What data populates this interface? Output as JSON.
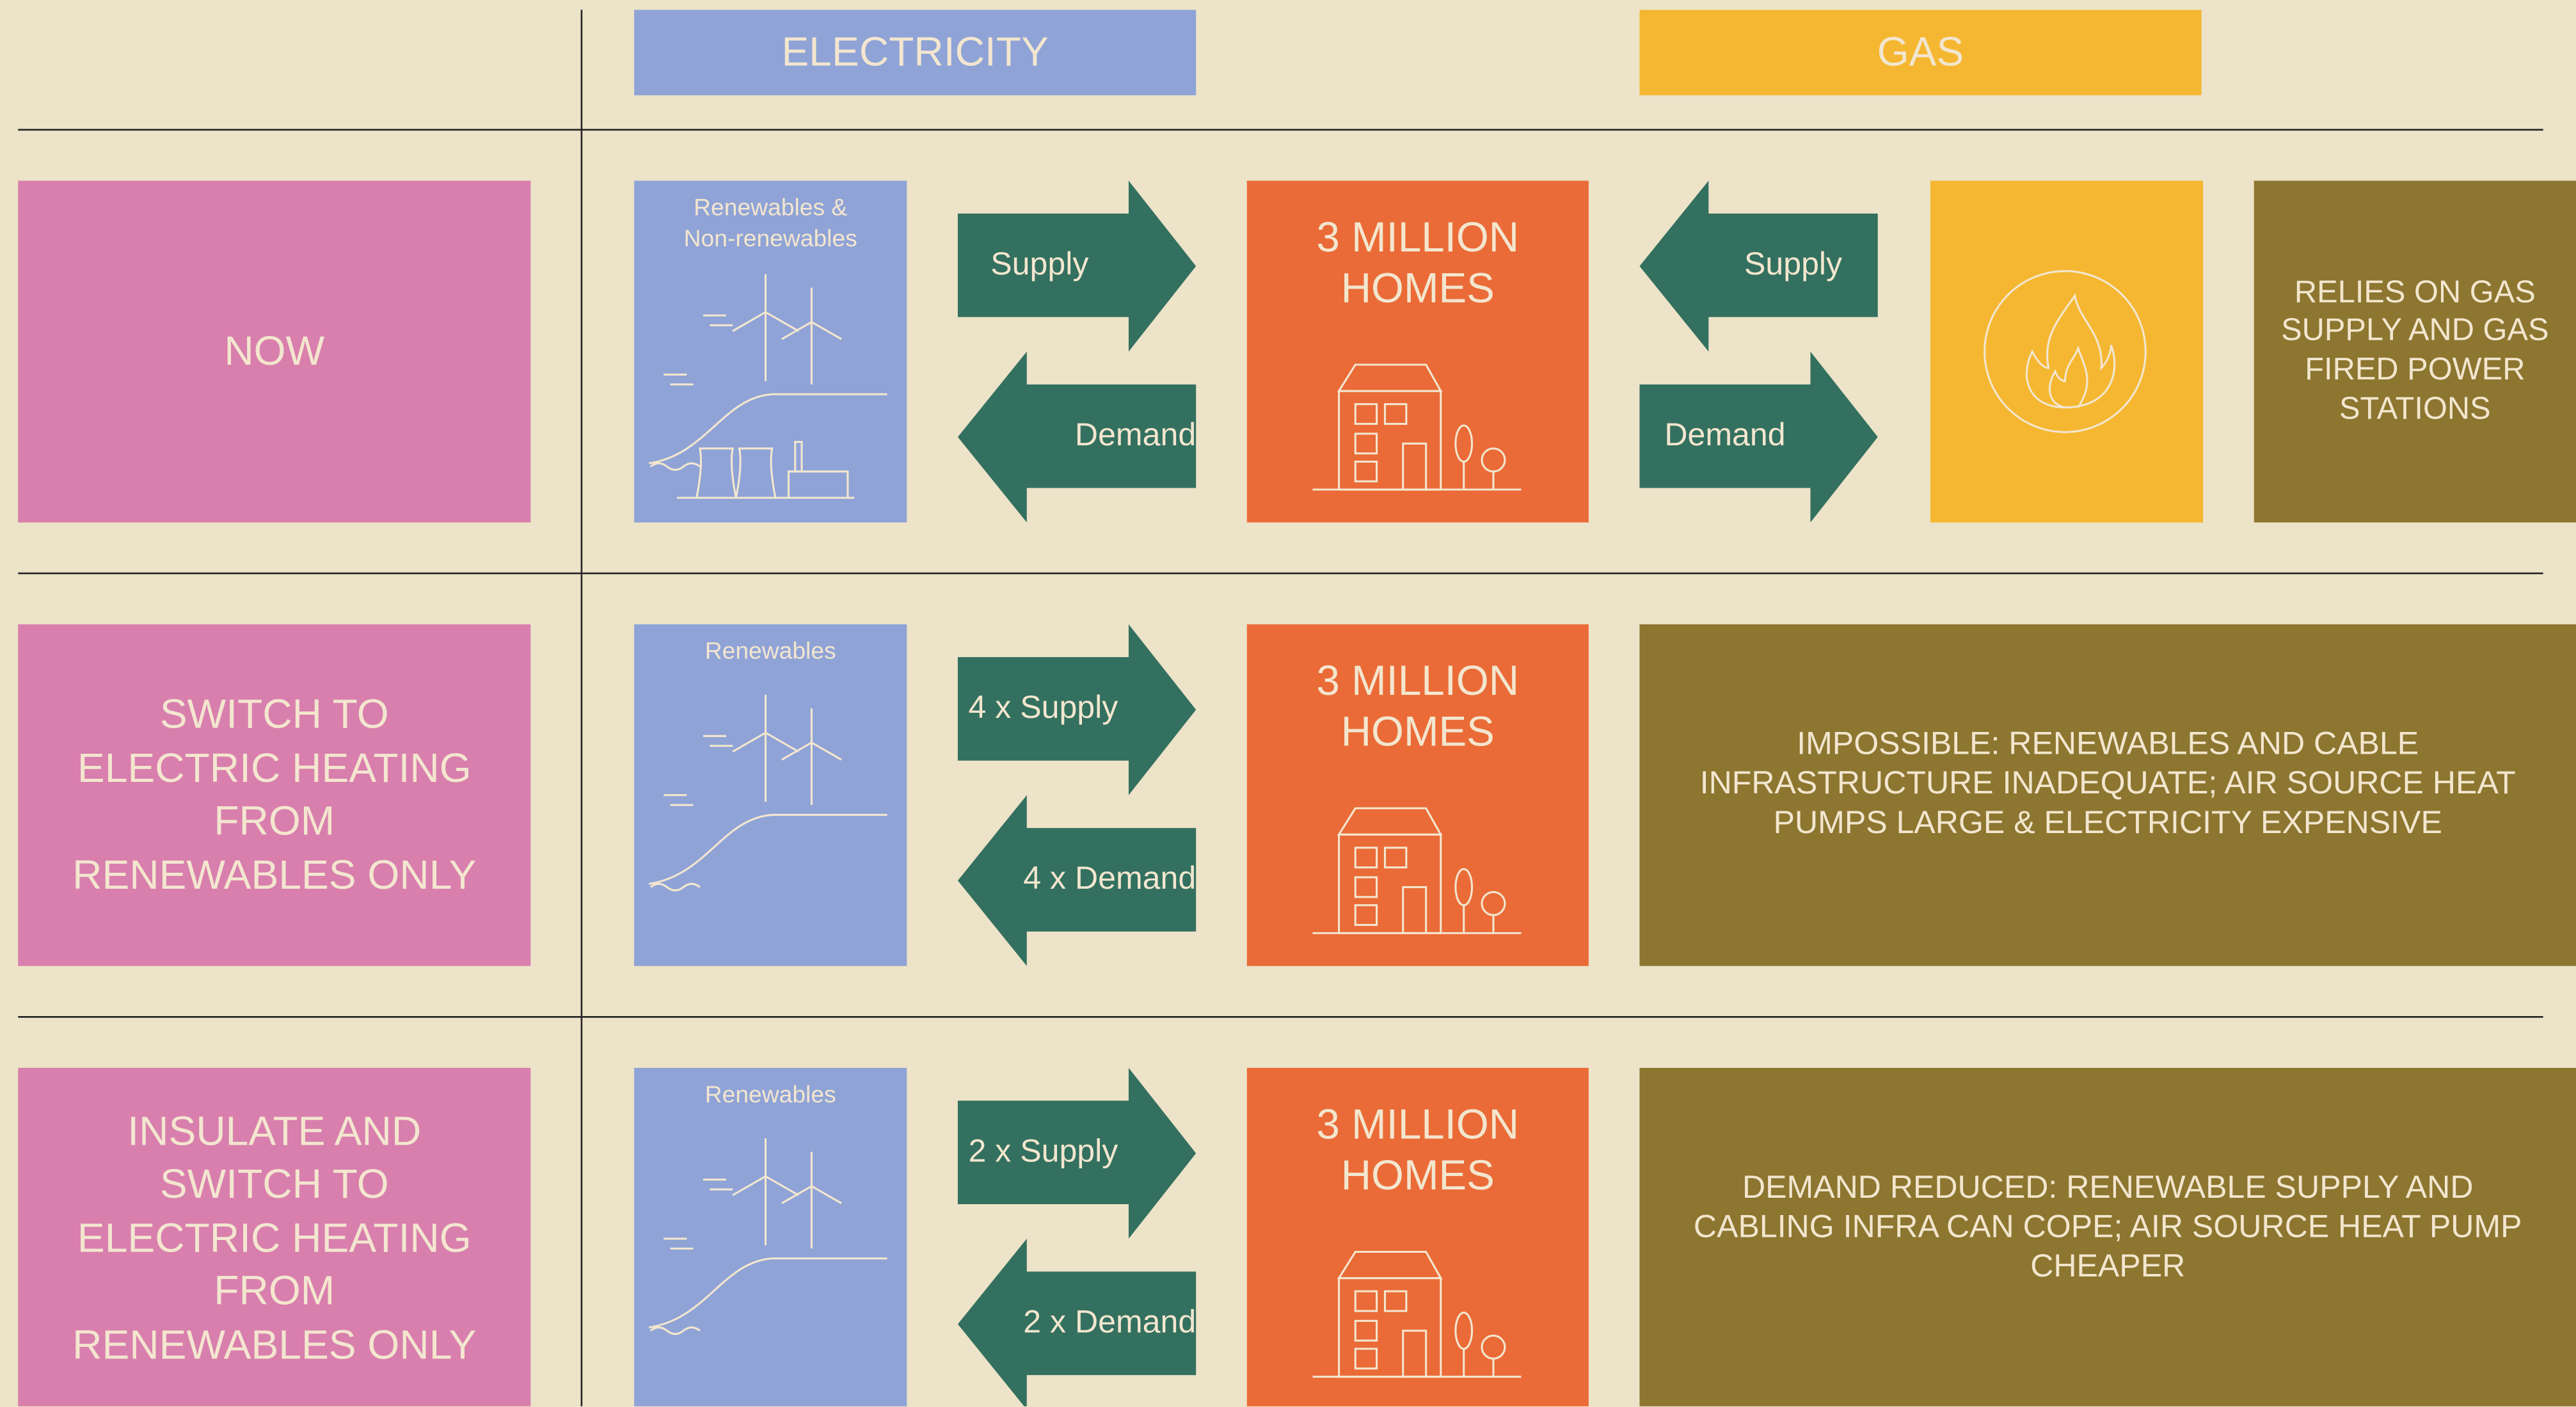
{
  "headers": {
    "electricity": "ELECTRICITY",
    "gas": "GAS"
  },
  "rows": [
    {
      "label": "NOW",
      "source": "Renewables & Non-renewables",
      "supply": "Supply",
      "demand": "Demand",
      "homes": "3 MILLION HOMES",
      "gas_supply": "Supply",
      "gas_demand": "Demand",
      "note": "RELIES ON GAS SUPPLY AND GAS FIRED POWER STATIONS"
    },
    {
      "label": "SWITCH TO ELECTRIC HEATING FROM RENEWABLES ONLY",
      "source": "Renewables",
      "supply": "4 x Supply",
      "demand": "4 x Demand",
      "homes": "3 MILLION HOMES",
      "note": "IMPOSSIBLE: RENEWABLES AND CABLE INFRASTRUCTURE INADEQUATE; AIR SOURCE HEAT PUMPS LARGE & ELECTRICITY EXPENSIVE"
    },
    {
      "label": "INSULATE AND SWITCH TO ELECTRIC HEATING FROM RENEWABLES ONLY",
      "source": "Renewables",
      "supply": "2 x Supply",
      "demand": "2 x Demand",
      "homes": "3 MILLION HOMES",
      "note": "DEMAND REDUCED: RENEWABLE SUPPLY AND CABLING INFRA CAN COPE; AIR SOURCE HEAT PUMP CHEAPER"
    }
  ]
}
